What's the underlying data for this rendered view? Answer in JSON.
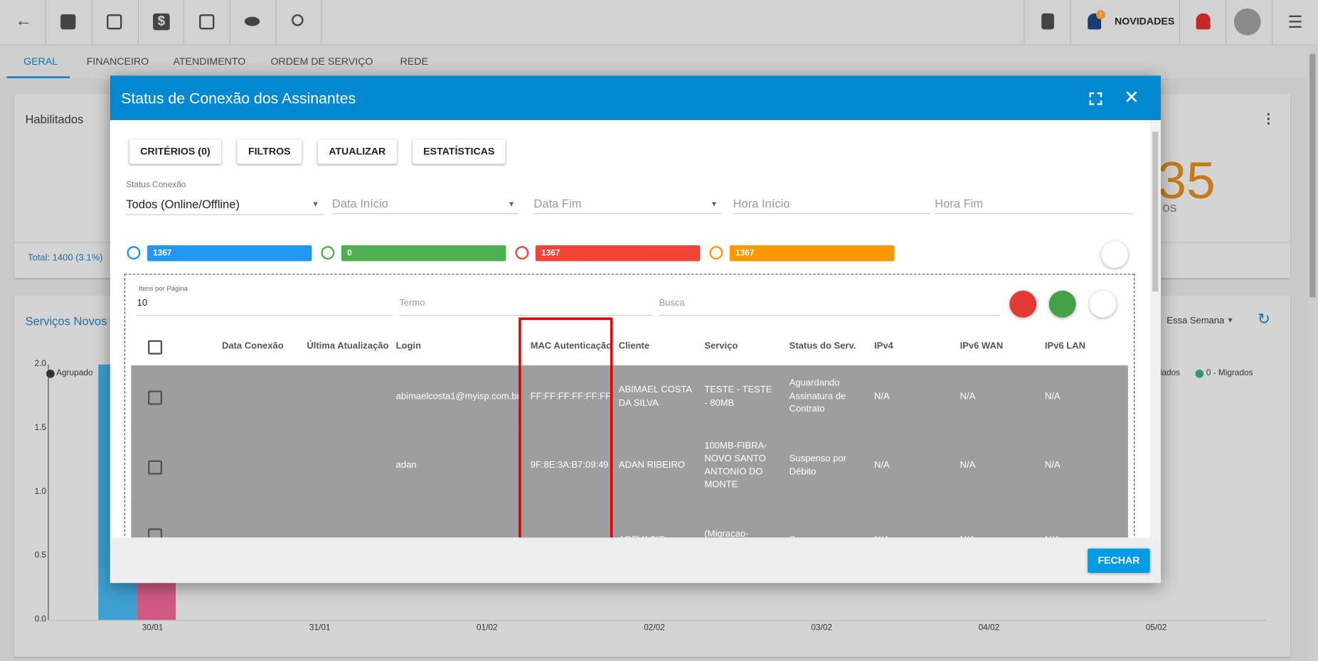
{
  "toolbar": {
    "badge": "!",
    "novidades": "NOVIDADES"
  },
  "tabs": [
    "GERAL",
    "FINANCEIRO",
    "ATENDIMENTO",
    "ORDEM DE SERVIÇO",
    "REDE"
  ],
  "card1": {
    "title": "Habilitados",
    "total": "Total: 1400 (3.1%)",
    "big": "35",
    "sub": "os"
  },
  "card2": {
    "title": "Serviços Novos x",
    "period": "Essa Semana",
    "legend": [
      "Agrupado",
      "lados",
      "0 - Migrados"
    ],
    "yticks": [
      "2.0",
      "1.5",
      "1.0",
      "0.5",
      "0.0"
    ],
    "xticks": [
      "30/01",
      "31/01",
      "01/02",
      "02/02",
      "03/02",
      "04/02",
      "05/02"
    ]
  },
  "modal": {
    "title": "Status de Conexão dos Assinantes",
    "buttons": [
      "CRITÉRIOS (0)",
      "FILTROS",
      "ATUALIZAR",
      "ESTATÍSTICAS"
    ],
    "status_label": "Status Conexão",
    "status_value": "Todos (Online/Offline)",
    "fields": [
      "Data Início",
      "Data Fim",
      "Hora Início",
      "Hora Fim"
    ],
    "counters": [
      "1367",
      "0",
      "1367",
      "1367"
    ],
    "items_label": "Itens por Página",
    "items_value": "10",
    "termo": "Termo",
    "busca": "Busca",
    "headers": [
      "Data Conexão",
      "Última Atualização",
      "Login",
      "MAC Autenticação",
      "Cliente",
      "Serviço",
      "Status do Serv.",
      "IPv4",
      "IPv6 WAN",
      "IPv6 LAN"
    ],
    "rows": [
      {
        "login": "abimaelcosta1@myisp.com.br",
        "mac": "FF:FF:FF:FF:FF:FF",
        "cliente": "ABIMAEL COSTA DA SILVA",
        "servico": "TESTE - TESTE - 80MB",
        "status": "Aguardando Assinatura de Contrato",
        "ipv4": "N/A",
        "ipv6wan": "N/A",
        "ipv6lan": "N/A"
      },
      {
        "login": "adan",
        "mac": "9F:8E:3A:B7:09:49",
        "cliente": "ADAN RIBEIRO",
        "servico": "100MB-FIBRA-NOVO SANTO ANTONIO DO MONTE",
        "status": "Suspenso por Débito",
        "ipv4": "N/A",
        "ipv6wan": "N/A",
        "ipv6lan": "N/A"
      },
      {
        "cliente": "ADEVACIR",
        "servico": "(Migracao-TesteMap)",
        "status": "Suspenso por",
        "ipv4": "N/A",
        "ipv6wan": "N/A",
        "ipv6lan": "N/A"
      }
    ],
    "close": "FECHAR"
  }
}
